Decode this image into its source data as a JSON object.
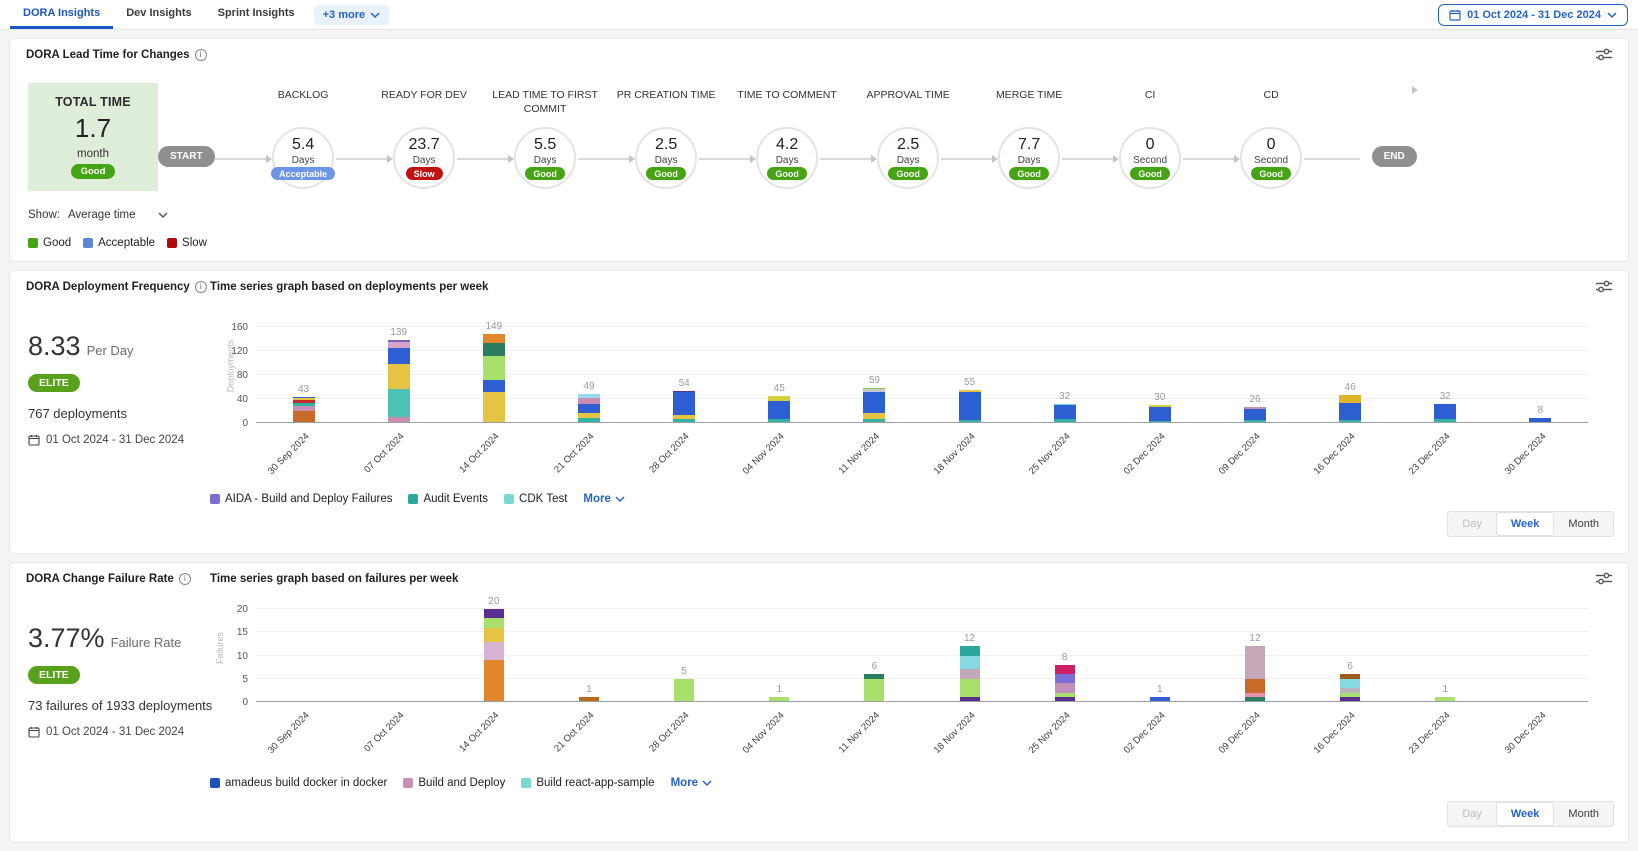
{
  "tabs": [
    {
      "label": "DORA Insights",
      "active": true
    },
    {
      "label": "Dev Insights",
      "active": false
    },
    {
      "label": "Sprint Insights",
      "active": false
    }
  ],
  "more_chip": {
    "label": "+3 more"
  },
  "date_range": "01 Oct 2024 - 31 Dec 2024",
  "lead_time": {
    "title": "DORA Lead Time for Changes",
    "total_card": {
      "title": "TOTAL TIME",
      "value": "1.7",
      "unit": "month",
      "badge": "Good"
    },
    "show_label": "Show:",
    "show_value": "Average time",
    "legend": [
      {
        "label": "Good",
        "color": "#44a413"
      },
      {
        "label": "Acceptable",
        "color": "#5c85d6"
      },
      {
        "label": "Slow",
        "color": "#b00c0c"
      }
    ],
    "start_label": "START",
    "end_label": "END",
    "badge_colors": {
      "Good": "#44a413",
      "Acceptable": "#6b96e8",
      "Slow": "#c01311"
    },
    "stages": [
      {
        "name": "BACKLOG",
        "value": "5.4",
        "unit": "Days",
        "badge": "Acceptable"
      },
      {
        "name": "READY FOR DEV",
        "value": "23.7",
        "unit": "Days",
        "badge": "Slow"
      },
      {
        "name": "LEAD TIME TO FIRST COMMIT",
        "value": "5.5",
        "unit": "Days",
        "badge": "Good"
      },
      {
        "name": "PR CREATION TIME",
        "value": "2.5",
        "unit": "Days",
        "badge": "Good"
      },
      {
        "name": "TIME TO COMMENT",
        "value": "4.2",
        "unit": "Days",
        "badge": "Good"
      },
      {
        "name": "APPROVAL TIME",
        "value": "2.5",
        "unit": "Days",
        "badge": "Good"
      },
      {
        "name": "MERGE TIME",
        "value": "7.7",
        "unit": "Days",
        "badge": "Good"
      },
      {
        "name": "CI",
        "value": "0",
        "unit": "Second",
        "badge": "Good"
      },
      {
        "name": "CD",
        "value": "0",
        "unit": "Second",
        "badge": "Good"
      }
    ]
  },
  "deployment": {
    "title": "DORA Deployment Frequency",
    "subtitle": "Time series graph based on deployments per week",
    "metric_value": "8.33",
    "metric_unit": "Per Day",
    "tier": "ELITE",
    "summary": "767 deployments",
    "date_range": "01 Oct 2024 - 31 Dec 2024",
    "legend": [
      {
        "label": "AIDA - Build and Deploy Failures",
        "color": "#7b6fd0"
      },
      {
        "label": "Audit Events",
        "color": "#2ba79b"
      },
      {
        "label": "CDK Test",
        "color": "#79d9d2"
      }
    ],
    "more_label": "More",
    "toggle": {
      "options": [
        "Day",
        "Week",
        "Month"
      ],
      "active": "Week",
      "muted": "Day"
    }
  },
  "failure": {
    "title": "DORA Change Failure Rate",
    "subtitle": "Time series graph based on failures per week",
    "metric_value": "3.77%",
    "metric_unit": "Failure Rate",
    "tier": "ELITE",
    "summary": "73 failures of 1933 deployments",
    "date_range": "01 Oct 2024 - 31 Dec 2024",
    "legend": [
      {
        "label": "amadeus build docker in docker",
        "color": "#1d51b8"
      },
      {
        "label": "Build and Deploy",
        "color": "#c88fb0"
      },
      {
        "label": "Build react-app-sample",
        "color": "#79d9d2"
      }
    ],
    "more_label": "More",
    "toggle": {
      "options": [
        "Day",
        "Week",
        "Month"
      ],
      "active": "Week",
      "muted": "Day"
    }
  },
  "chart_data": [
    {
      "id": "deployments",
      "type": "stacked-bar",
      "title": "Time series graph based on deployments per week",
      "ylabel": "Deployments",
      "yticks": [
        0,
        40,
        80,
        120,
        160
      ],
      "ylim": [
        0,
        160
      ],
      "grid": true,
      "categories": [
        "30 Sep 2024",
        "07 Oct 2024",
        "14 Oct 2024",
        "21 Oct 2024",
        "28 Oct 2024",
        "04 Nov 2024",
        "11 Nov 2024",
        "18 Nov 2024",
        "25 Nov 2024",
        "02 Dec 2024",
        "09 Dec 2024",
        "16 Dec 2024",
        "23 Dec 2024",
        "30 Dec 2024"
      ],
      "totals": [
        43,
        139,
        149,
        49,
        54,
        45,
        59,
        55,
        32,
        30,
        26,
        46,
        32,
        8
      ],
      "bars": [
        [
          [
            20,
            "#c96a28"
          ],
          [
            9,
            "#c88fb0"
          ],
          [
            5,
            "#33b1a2"
          ],
          [
            4,
            "#c22a23"
          ],
          [
            3,
            "#e4c441"
          ],
          [
            2,
            "#2d5fd3"
          ]
        ],
        [
          [
            10,
            "#c88fb0"
          ],
          [
            47,
            "#4cc2b4"
          ],
          [
            42,
            "#e4c441"
          ],
          [
            26,
            "#2d5fd3"
          ],
          [
            10,
            "#d7a3cb"
          ],
          [
            4,
            "#7b5fc0"
          ]
        ],
        [
          [
            52,
            "#e4c441"
          ],
          [
            19,
            "#2d5fd3"
          ],
          [
            41,
            "#a8e06c"
          ],
          [
            21,
            "#2a7e5f"
          ],
          [
            16,
            "#e2862c"
          ]
        ],
        [
          [
            9,
            "#33b1a2"
          ],
          [
            7,
            "#e4c441"
          ],
          [
            16,
            "#2d5fd3"
          ],
          [
            9,
            "#c88fb0"
          ],
          [
            8,
            "#9bd7ee"
          ]
        ],
        [
          [
            6,
            "#33b1a2"
          ],
          [
            7,
            "#e4c441"
          ],
          [
            38,
            "#2d5fd3"
          ],
          [
            3,
            "#5a2e91"
          ]
        ],
        [
          [
            6,
            "#33b1a2"
          ],
          [
            31,
            "#2d5fd3"
          ],
          [
            8,
            "#d4cf3a"
          ]
        ],
        [
          [
            7,
            "#33b1a2"
          ],
          [
            9,
            "#e4c441"
          ],
          [
            36,
            "#2d5fd3"
          ],
          [
            4,
            "#c9c9d4"
          ],
          [
            3,
            "#8bc34a"
          ]
        ],
        [
          [
            5,
            "#33b1a2"
          ],
          [
            47,
            "#2d5fd3"
          ],
          [
            3,
            "#e4c441"
          ]
        ],
        [
          [
            6,
            "#33b1a2"
          ],
          [
            24,
            "#2d5fd3"
          ],
          [
            2,
            "#79d9d2"
          ]
        ],
        [
          [
            4,
            "#33b1a2"
          ],
          [
            23,
            "#2d5fd3"
          ],
          [
            3,
            "#d4cf3a"
          ]
        ],
        [
          [
            5,
            "#33b1a2"
          ],
          [
            19,
            "#2d5fd3"
          ],
          [
            2,
            "#c88fb0"
          ]
        ],
        [
          [
            5,
            "#33b1a2"
          ],
          [
            28,
            "#2d5fd3"
          ],
          [
            13,
            "#e0b52c"
          ]
        ],
        [
          [
            6,
            "#33b1a2"
          ],
          [
            26,
            "#2d5fd3"
          ]
        ],
        [
          [
            8,
            "#2d5fd3"
          ]
        ]
      ]
    },
    {
      "id": "failures",
      "type": "stacked-bar",
      "title": "Time series graph based on failures per week",
      "ylabel": "Failures",
      "yticks": [
        0,
        5,
        10,
        15,
        20
      ],
      "ylim": [
        0,
        20
      ],
      "grid": true,
      "categories": [
        "30 Sep 2024",
        "07 Oct 2024",
        "14 Oct 2024",
        "21 Oct 2024",
        "28 Oct 2024",
        "04 Nov 2024",
        "11 Nov 2024",
        "18 Nov 2024",
        "25 Nov 2024",
        "02 Dec 2024",
        "09 Dec 2024",
        "16 Dec 2024",
        "23 Dec 2024",
        "30 Dec 2024"
      ],
      "totals": [
        0,
        0,
        20,
        1,
        5,
        1,
        6,
        12,
        8,
        1,
        12,
        6,
        1,
        0
      ],
      "bars": [
        [],
        [],
        [
          [
            9,
            "#e2862c"
          ],
          [
            4,
            "#d7b3d3"
          ],
          [
            3,
            "#e4c441"
          ],
          [
            2,
            "#a8e06c"
          ],
          [
            2,
            "#5a2e91"
          ]
        ],
        [
          [
            1,
            "#bc6a1e"
          ]
        ],
        [
          [
            5,
            "#a8e06c"
          ]
        ],
        [
          [
            1,
            "#a8e06c"
          ]
        ],
        [
          [
            5,
            "#a8e06c"
          ],
          [
            1,
            "#2a7e5f"
          ]
        ],
        [
          [
            1,
            "#5a2e91"
          ],
          [
            4,
            "#a8e06c"
          ],
          [
            2,
            "#c4a8b8"
          ],
          [
            3,
            "#84d9e2"
          ],
          [
            2,
            "#2ba79b"
          ]
        ],
        [
          [
            1,
            "#5a2e91"
          ],
          [
            1,
            "#a8e06c"
          ],
          [
            2,
            "#c48fb8"
          ],
          [
            2,
            "#7a6fd8"
          ],
          [
            2,
            "#cf1f64"
          ]
        ],
        [
          [
            1,
            "#2d5fd3"
          ]
        ],
        [
          [
            1,
            "#2a7e5f"
          ],
          [
            1,
            "#e58fb1"
          ],
          [
            3,
            "#c96a28"
          ],
          [
            7,
            "#c4a8b8"
          ]
        ],
        [
          [
            1,
            "#5a2e91"
          ],
          [
            1,
            "#a8e06c"
          ],
          [
            1,
            "#b9b4c0"
          ],
          [
            2,
            "#84d9e2"
          ],
          [
            1,
            "#a05a1f"
          ]
        ],
        [
          [
            1,
            "#a8e06c"
          ]
        ],
        []
      ]
    }
  ]
}
